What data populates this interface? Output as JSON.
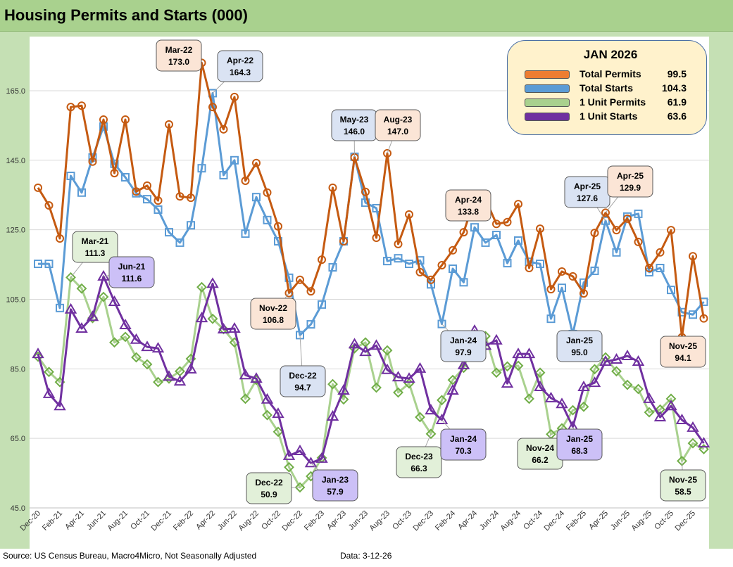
{
  "title": "Housing Permits and Starts (000)",
  "footer": {
    "source": "Source: US Census Bureau, Macro4Micro, Not Seasonally Adjusted",
    "date": "Data: 3-12-26"
  },
  "legend": {
    "title": "JAN 2026",
    "items": [
      {
        "name": "Total Permits",
        "value": "99.5",
        "color": "#ed7d31"
      },
      {
        "name": "Total Starts",
        "value": "104.3",
        "color": "#5b9bd5"
      },
      {
        "name": "1 Unit Permits",
        "value": "61.9",
        "color": "#a9d18e"
      },
      {
        "name": "1 Unit Starts",
        "value": "63.6",
        "color": "#7030a0"
      }
    ]
  },
  "chart_data": {
    "type": "line",
    "title": "Housing Permits and Starts (000)",
    "xlabel": "",
    "ylabel": "",
    "ylim": [
      45,
      175
    ],
    "yticks": [
      "45.0",
      "65.0",
      "85.0",
      "105.0",
      "125.0",
      "145.0",
      "165.0"
    ],
    "grid": true,
    "legend_position": "top-right",
    "x": [
      "Dec-20",
      "Jan-21",
      "Feb-21",
      "Mar-21",
      "Apr-21",
      "May-21",
      "Jun-21",
      "Jul-21",
      "Aug-21",
      "Sep-21",
      "Oct-21",
      "Nov-21",
      "Dec-21",
      "Jan-22",
      "Feb-22",
      "Mar-22",
      "Apr-22",
      "May-22",
      "Jun-22",
      "Jul-22",
      "Aug-22",
      "Sep-22",
      "Oct-22",
      "Nov-22",
      "Dec-22",
      "Jan-23",
      "Feb-23",
      "Mar-23",
      "Apr-23",
      "May-23",
      "Jun-23",
      "Jul-23",
      "Aug-23",
      "Sep-23",
      "Oct-23",
      "Nov-23",
      "Dec-23",
      "Jan-24",
      "Feb-24",
      "Mar-24",
      "Apr-24",
      "May-24",
      "Jun-24",
      "Jul-24",
      "Aug-24",
      "Sep-24",
      "Oct-24",
      "Nov-24",
      "Dec-24",
      "Jan-25",
      "Feb-25",
      "Mar-25",
      "Apr-25",
      "May-25",
      "Jun-25",
      "Jul-25",
      "Aug-25",
      "Sep-25",
      "Oct-25",
      "Nov-25",
      "Dec-25",
      "Jan-26"
    ],
    "xtick_labels": [
      "Dec-20",
      "Feb-21",
      "Apr-21",
      "Jun-21",
      "Aug-21",
      "Oct-21",
      "Dec-21",
      "Feb-22",
      "Apr-22",
      "Jun-22",
      "Aug-22",
      "Oct-22",
      "Dec-22",
      "Feb-23",
      "Apr-23",
      "Jun-23",
      "Aug-23",
      "Oct-23",
      "Dec-23",
      "Feb-24",
      "Apr-24",
      "Jun-24",
      "Aug-24",
      "Oct-24",
      "Dec-24",
      "Feb-25",
      "Apr-25",
      "Jun-25",
      "Aug-25",
      "Oct-25",
      "Dec-25"
    ],
    "series": [
      {
        "name": "Total Permits",
        "color": "#c55a11",
        "marker": "circle",
        "values": [
          137.1,
          132.0,
          122.5,
          160.3,
          160.7,
          144.6,
          156.7,
          141.3,
          156.7,
          136.0,
          137.7,
          133.4,
          155.3,
          134.6,
          134.2,
          173.0,
          160.3,
          153.9,
          163.2,
          139.1,
          144.2,
          135.7,
          126.0,
          106.8,
          110.6,
          107.3,
          116.4,
          137.1,
          121.7,
          145.8,
          135.9,
          122.7,
          147.0,
          120.9,
          129.4,
          112.8,
          110.6,
          114.8,
          119.1,
          124.3,
          133.8,
          133.8,
          126.7,
          127.2,
          132.4,
          114.0,
          125.3,
          107.9,
          113.0,
          111.6,
          106.7,
          124.1,
          129.9,
          124.9,
          128.2,
          121.5,
          114.0,
          118.5,
          124.9,
          94.1,
          117.4,
          99.5
        ]
      },
      {
        "name": "Total Starts",
        "color": "#5b9bd5",
        "marker": "square",
        "values": [
          115.2,
          115.2,
          102.5,
          140.5,
          135.7,
          145.8,
          154.7,
          144.0,
          140.1,
          135.5,
          133.8,
          130.8,
          124.3,
          121.3,
          126.3,
          142.7,
          164.3,
          140.7,
          145.0,
          123.9,
          134.4,
          127.8,
          121.7,
          111.2,
          94.7,
          97.8,
          103.5,
          114.2,
          121.7,
          146.0,
          132.8,
          131.2,
          116.0,
          116.8,
          115.2,
          116.2,
          109.3,
          97.9,
          113.8,
          109.9,
          125.7,
          121.3,
          123.5,
          115.4,
          121.9,
          115.8,
          115.2,
          99.4,
          108.3,
          95.0,
          109.8,
          113.2,
          127.6,
          118.5,
          128.8,
          129.6,
          112.8,
          114.0,
          107.7,
          101.3,
          100.6,
          104.3
        ]
      },
      {
        "name": "1 Unit Permits",
        "color": "#a9d18e",
        "marker_color": "#70ad47",
        "marker": "diamond",
        "values": [
          88.5,
          84.1,
          81.2,
          111.3,
          108.1,
          99.6,
          105.7,
          92.6,
          94.2,
          88.3,
          86.3,
          81.2,
          82.2,
          84.3,
          87.9,
          108.5,
          99.4,
          96.4,
          92.6,
          76.4,
          81.8,
          71.7,
          66.9,
          56.7,
          50.9,
          54.1,
          59.4,
          80.6,
          76.2,
          90.9,
          92.6,
          79.6,
          90.3,
          78.2,
          80.8,
          71.1,
          66.3,
          76.0,
          81.8,
          85.3,
          93.8,
          94.4,
          83.9,
          85.7,
          85.9,
          76.4,
          83.9,
          66.2,
          67.9,
          73.1,
          74.1,
          84.9,
          88.3,
          84.3,
          80.4,
          79.2,
          72.5,
          73.3,
          76.4,
          58.5,
          63.6,
          61.9
        ]
      },
      {
        "name": "1 Unit Starts",
        "color": "#7030a0",
        "marker": "triangle",
        "values": [
          89.3,
          77.8,
          74.3,
          102.1,
          96.6,
          100.0,
          111.6,
          104.3,
          97.6,
          93.4,
          91.3,
          90.9,
          82.8,
          81.4,
          84.9,
          99.6,
          109.5,
          96.4,
          96.6,
          83.2,
          82.2,
          76.2,
          72.1,
          60.0,
          61.4,
          57.9,
          59.2,
          71.3,
          78.8,
          92.1,
          89.9,
          91.7,
          84.7,
          82.6,
          82.2,
          85.1,
          73.1,
          70.3,
          78.8,
          86.1,
          96.0,
          91.7,
          93.2,
          80.8,
          89.3,
          89.3,
          79.8,
          76.6,
          74.9,
          68.3,
          79.8,
          81.0,
          87.1,
          87.7,
          88.7,
          87.1,
          76.4,
          71.1,
          74.3,
          70.3,
          68.1,
          63.6
        ]
      }
    ],
    "annotations": [
      {
        "series": 0,
        "x": "Mar-22",
        "label": "Mar-22",
        "value": "173.0"
      },
      {
        "series": 1,
        "x": "Apr-22",
        "label": "Apr-22",
        "value": "164.3"
      },
      {
        "series": 2,
        "x": "Mar-21",
        "label": "Mar-21",
        "value": "111.3"
      },
      {
        "series": 3,
        "x": "Jun-21",
        "label": "Jun-21",
        "value": "111.6"
      },
      {
        "series": 0,
        "x": "Nov-22",
        "label": "Nov-22",
        "value": "106.8"
      },
      {
        "series": 1,
        "x": "Dec-22",
        "label": "Dec-22",
        "value": "94.7"
      },
      {
        "series": 2,
        "x": "Dec-22",
        "label": "Dec-22",
        "value": "50.9"
      },
      {
        "series": 3,
        "x": "Jan-23",
        "label": "Jan-23",
        "value": "57.9"
      },
      {
        "series": 1,
        "x": "May-23",
        "label": "May-23",
        "value": "146.0"
      },
      {
        "series": 0,
        "x": "Aug-23",
        "label": "Aug-23",
        "value": "147.0"
      },
      {
        "series": 2,
        "x": "Dec-23",
        "label": "Dec-23",
        "value": "66.3"
      },
      {
        "series": 1,
        "x": "Jan-24",
        "label": "Jan-24",
        "value": "97.9"
      },
      {
        "series": 3,
        "x": "Jan-24",
        "label": "Jan-24",
        "value": "70.3"
      },
      {
        "series": 0,
        "x": "Apr-24",
        "label": "Apr-24",
        "value": "133.8"
      },
      {
        "series": 2,
        "x": "Nov-24",
        "label": "Nov-24",
        "value": "66.2"
      },
      {
        "series": 1,
        "x": "Jan-25",
        "label": "Jan-25",
        "value": "95.0"
      },
      {
        "series": 3,
        "x": "Jan-25",
        "label": "Jan-25",
        "value": "68.3"
      },
      {
        "series": 1,
        "x": "Apr-25",
        "label": "Apr-25",
        "value": "127.6"
      },
      {
        "series": 0,
        "x": "Apr-25",
        "label": "Apr-25",
        "value": "129.9"
      },
      {
        "series": 0,
        "x": "Nov-25",
        "label": "Nov-25",
        "value": "94.1"
      },
      {
        "series": 2,
        "x": "Nov-25",
        "label": "Nov-25",
        "value": "58.5"
      }
    ]
  }
}
